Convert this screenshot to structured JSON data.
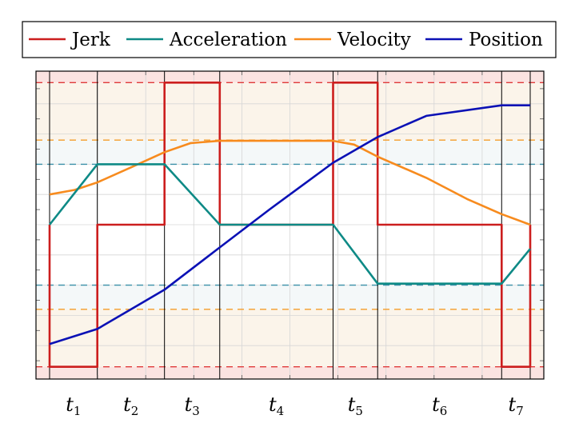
{
  "chart_data": {
    "type": "line",
    "title": "",
    "xlabel": "",
    "ylabel": "",
    "grid": true,
    "legend_position": "top",
    "phase_boundaries": [
      0,
      0.152,
      0.366,
      0.542,
      0.903,
      1.045,
      1.44,
      1.531
    ],
    "xlim": [
      0,
      1.531
    ],
    "ylim": [
      -1.0,
      1.0
    ],
    "phases": [
      {
        "name": "t",
        "sub": "1"
      },
      {
        "name": "t",
        "sub": "2"
      },
      {
        "name": "t",
        "sub": "3"
      },
      {
        "name": "t",
        "sub": "4"
      },
      {
        "name": "t",
        "sub": "5"
      },
      {
        "name": "t",
        "sub": "6"
      },
      {
        "name": "t",
        "sub": "7"
      }
    ],
    "limits": {
      "jerk": {
        "value": 0.94,
        "color": "#e03a3a"
      },
      "acceleration": {
        "value": 0.4,
        "color": "#3a8fa8"
      },
      "velocity": {
        "value": 0.56,
        "color": "#f39c2b"
      }
    },
    "series": [
      {
        "name": "Jerk",
        "color": "#cc1e1e",
        "x": [
          0,
          0,
          0.152,
          0.152,
          0.366,
          0.366,
          0.542,
          0.542,
          0.903,
          0.903,
          1.045,
          1.045,
          1.44,
          1.44,
          1.531,
          1.531
        ],
        "y": [
          0,
          -0.94,
          -0.94,
          0,
          0,
          0.94,
          0.94,
          0,
          0,
          0.94,
          0.94,
          0,
          0,
          -0.94,
          -0.94,
          0
        ]
      },
      {
        "name": "Acceleration",
        "color": "#0e8a86",
        "x": [
          0,
          0.152,
          0.366,
          0.542,
          0.903,
          1.045,
          1.44,
          1.531
        ],
        "y": [
          0,
          0.4,
          0.4,
          0,
          0,
          -0.39,
          -0.39,
          -0.16
        ]
      },
      {
        "name": "Velocity",
        "color": "#f78b1e",
        "x": [
          0,
          0.08,
          0.152,
          0.26,
          0.366,
          0.45,
          0.542,
          0.7,
          0.903,
          0.97,
          1.045,
          1.2,
          1.33,
          1.44,
          1.531
        ],
        "y": [
          0.2,
          0.23,
          0.28,
          0.38,
          0.48,
          0.54,
          0.555,
          0.555,
          0.555,
          0.53,
          0.45,
          0.31,
          0.17,
          0.07,
          0.0
        ]
      },
      {
        "name": "Position",
        "color": "#0b11b5",
        "x": [
          0,
          0.152,
          0.366,
          0.542,
          0.7,
          0.903,
          1.045,
          1.2,
          1.44,
          1.531
        ],
        "y": [
          -0.79,
          -0.69,
          -0.43,
          -0.15,
          0.1,
          0.41,
          0.58,
          0.72,
          0.79,
          0.79
        ]
      }
    ]
  }
}
